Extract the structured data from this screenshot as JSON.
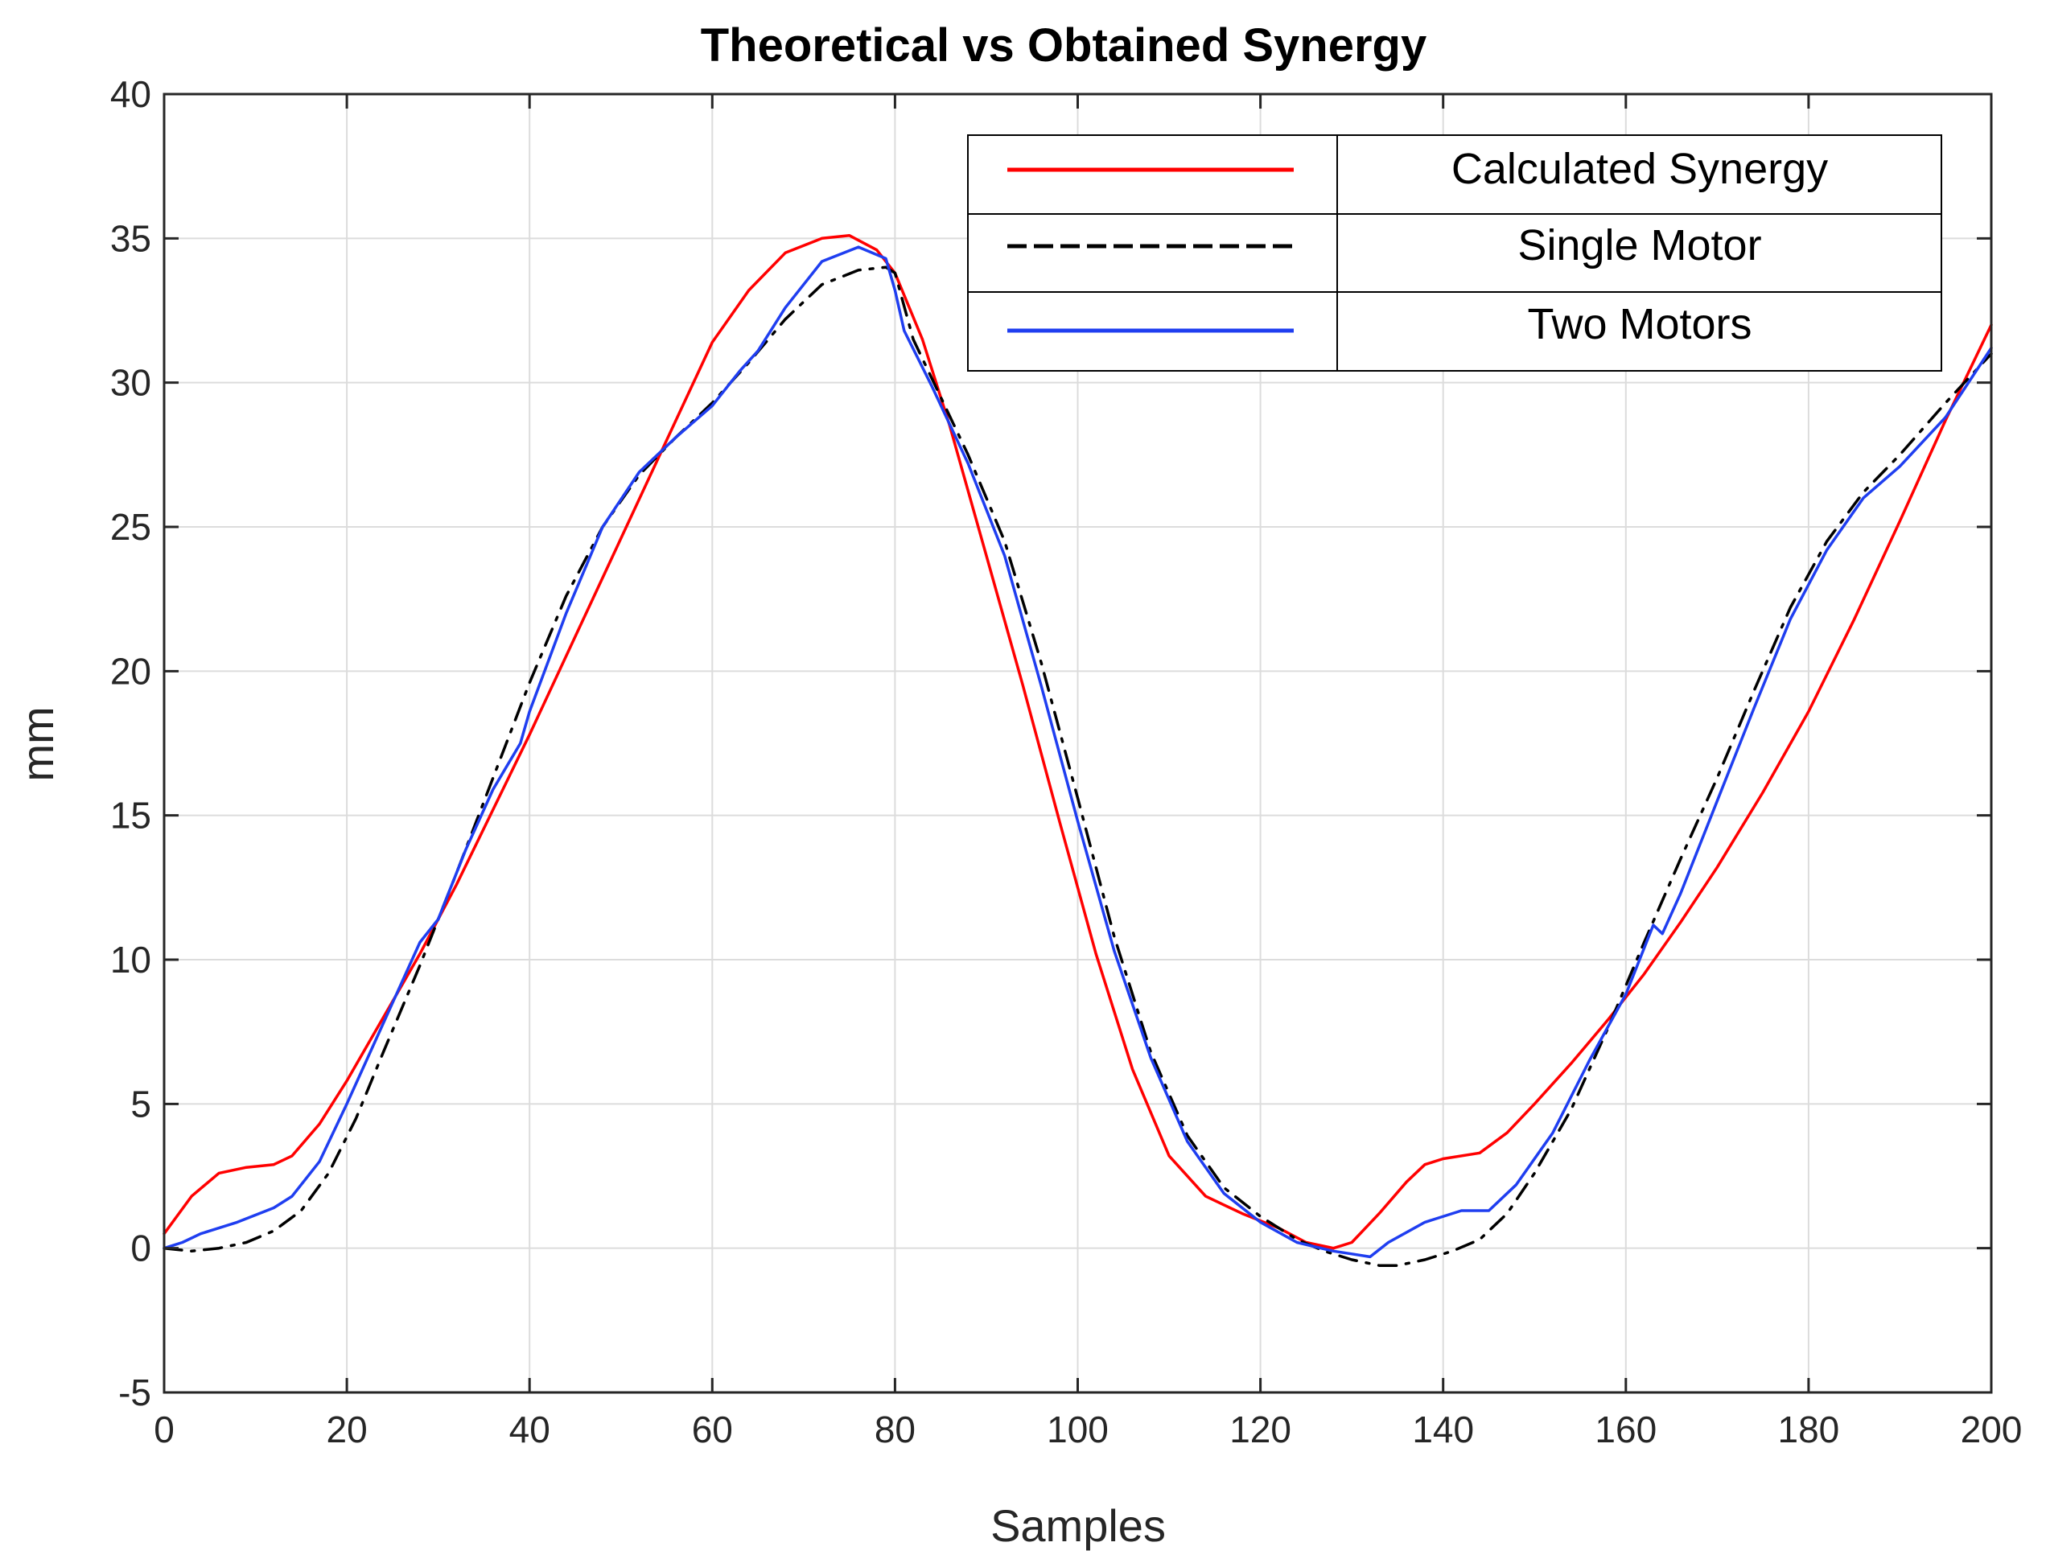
{
  "chart_data": {
    "type": "line",
    "title": "Theoretical vs Obtained Synergy",
    "xlabel": "Samples",
    "ylabel": "mm",
    "xlim": [
      0,
      200
    ],
    "ylim": [
      -5,
      40
    ],
    "xticks": [
      0,
      20,
      40,
      60,
      80,
      100,
      120,
      140,
      160,
      180,
      200
    ],
    "yticks": [
      -5,
      0,
      5,
      10,
      15,
      20,
      25,
      30,
      35,
      40
    ],
    "grid": true,
    "legend_position": "top-right",
    "series": [
      {
        "name": "Calculated Synergy",
        "color": "#ff0000",
        "style": "solid",
        "x": [
          0,
          3,
          6,
          9,
          12,
          14,
          17,
          20,
          24,
          28,
          32,
          36,
          40,
          45,
          50,
          55,
          60,
          64,
          68,
          72,
          75,
          78,
          80,
          83,
          86,
          90,
          94,
          98,
          102,
          106,
          110,
          114,
          118,
          122,
          125,
          128,
          130,
          133,
          136,
          138,
          140,
          144,
          147,
          150,
          154,
          158,
          162,
          166,
          170,
          175,
          180,
          185,
          190,
          195,
          200
        ],
        "y": [
          0.5,
          1.8,
          2.6,
          2.8,
          2.9,
          3.2,
          4.3,
          5.8,
          8.0,
          10.2,
          12.6,
          15.2,
          17.8,
          21.2,
          24.6,
          28.0,
          31.4,
          33.2,
          34.5,
          35.0,
          35.1,
          34.6,
          33.8,
          31.5,
          28.5,
          24.0,
          19.5,
          14.8,
          10.2,
          6.2,
          3.2,
          1.8,
          1.2,
          0.7,
          0.2,
          0.0,
          0.2,
          1.2,
          2.3,
          2.9,
          3.1,
          3.3,
          4.0,
          5.0,
          6.4,
          7.9,
          9.5,
          11.3,
          13.2,
          15.8,
          18.6,
          21.8,
          25.2,
          28.7,
          32.0
        ]
      },
      {
        "name": "Single Motor",
        "color": "#000000",
        "style": "dashed",
        "x": [
          0,
          3,
          6,
          9,
          12,
          15,
          18,
          21,
          24,
          28,
          32,
          36,
          40,
          44,
          48,
          52,
          56,
          60,
          64,
          68,
          72,
          76,
          79,
          80,
          82,
          85,
          88,
          92,
          96,
          100,
          104,
          108,
          112,
          116,
          120,
          124,
          127,
          130,
          133,
          135,
          138,
          141,
          144,
          147,
          150,
          154,
          158,
          162,
          166,
          170,
          174,
          178,
          182,
          186,
          190,
          195,
          200
        ],
        "y": [
          0.0,
          -0.1,
          0.0,
          0.2,
          0.6,
          1.3,
          2.6,
          4.5,
          6.8,
          9.8,
          13.0,
          16.3,
          19.6,
          22.6,
          25.0,
          26.8,
          28.1,
          29.3,
          30.7,
          32.2,
          33.4,
          33.9,
          34.0,
          33.8,
          31.5,
          29.5,
          27.5,
          24.5,
          20.3,
          15.6,
          10.8,
          6.8,
          3.9,
          2.1,
          1.1,
          0.3,
          -0.1,
          -0.4,
          -0.6,
          -0.6,
          -0.4,
          -0.1,
          0.3,
          1.2,
          2.6,
          4.8,
          7.6,
          10.6,
          13.5,
          16.3,
          19.3,
          22.2,
          24.5,
          26.2,
          27.5,
          29.3,
          31.0
        ]
      },
      {
        "name": "Two Motors",
        "color": "#1f3ef0",
        "style": "solid",
        "x": [
          0,
          2,
          4,
          8,
          12,
          14,
          17,
          20,
          24,
          28,
          30,
          33,
          36,
          39,
          40,
          44,
          48,
          52,
          56,
          60,
          63,
          65,
          68,
          72,
          76,
          79,
          80,
          81,
          84,
          88,
          92,
          96,
          100,
          104,
          108,
          112,
          116,
          120,
          124,
          128,
          130,
          132,
          134,
          138,
          142,
          145,
          148,
          152,
          156,
          160,
          163,
          164,
          166,
          170,
          174,
          178,
          182,
          186,
          190,
          195,
          200
        ],
        "y": [
          0.0,
          0.2,
          0.5,
          0.9,
          1.4,
          1.8,
          3.0,
          5.0,
          7.8,
          10.6,
          11.4,
          13.8,
          15.9,
          17.5,
          18.6,
          22.0,
          25.0,
          26.9,
          28.1,
          29.2,
          30.4,
          31.1,
          32.6,
          34.2,
          34.7,
          34.3,
          33.2,
          31.8,
          29.9,
          27.2,
          24.0,
          19.5,
          14.8,
          10.3,
          6.6,
          3.7,
          1.9,
          0.9,
          0.2,
          -0.1,
          -0.2,
          -0.3,
          0.2,
          0.9,
          1.3,
          1.3,
          2.2,
          4.0,
          6.5,
          8.8,
          11.2,
          10.9,
          12.3,
          15.5,
          18.7,
          21.8,
          24.2,
          26.0,
          27.1,
          28.8,
          31.2
        ]
      }
    ]
  }
}
